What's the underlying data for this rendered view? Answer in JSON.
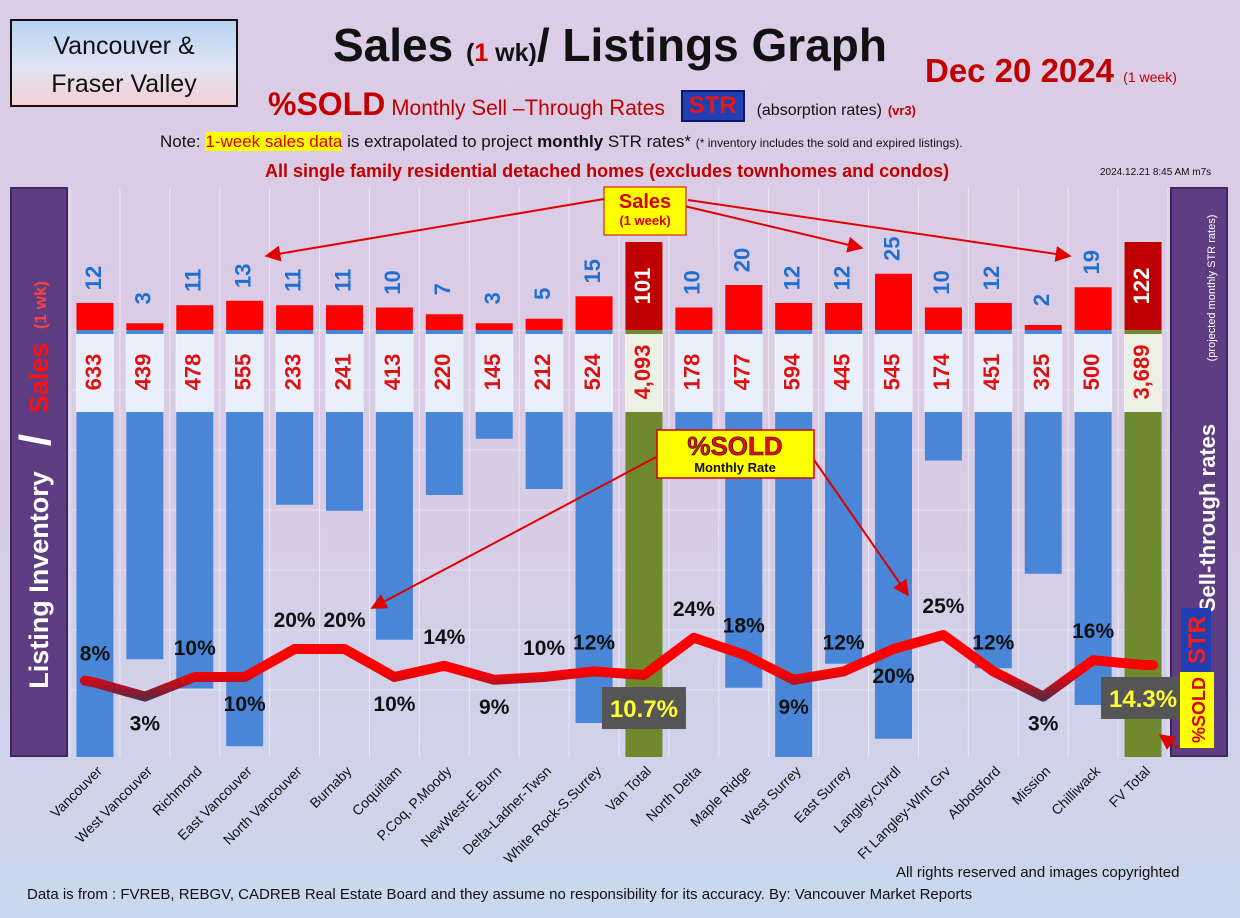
{
  "header": {
    "region_line1": "Vancouver &",
    "region_line2": "Fraser Valley",
    "title_a": "Sales",
    "title_paren_open": "(",
    "title_one": "1",
    "title_wk": " wk)",
    "title_b": "/ Listings Graph",
    "date": "Dec 20  2024",
    "date_note": "(1 week)",
    "pct_sold": "%SOLD",
    "subtitle_m": "M",
    "subtitle_monthly": "onthly ",
    "subtitle_s": "S",
    "subtitle_sell": "ell –",
    "subtitle_t": "T",
    "subtitle_through": "hrough ",
    "subtitle_r": "R",
    "subtitle_rates": "ates",
    "str_badge": "STR",
    "absorption": "(absorption rates)",
    "version": "(vr3)",
    "note_prefix": "Note: ",
    "note_highlight": "1-week sales data",
    "note_mid": " is extrapolated to project ",
    "note_bold": "monthly",
    "note_suffix": " STR rates* ",
    "note_small": "(* inventory includes the sold and expired listings).",
    "exclusion": "All single family residential detached homes (excludes townhomes and condos)",
    "timestamp": "2024.12.21 8:45 AM m7s"
  },
  "chart_data": {
    "type": "bar",
    "categories": [
      "Vancouver",
      "West Vancouver",
      "Richmond",
      "East Vancouver",
      "North Vancouver",
      "Burnaby",
      "Coquitlam",
      "P.Coq, P.Moody",
      "NewWest-E.Burn",
      "Delta-Ladner-Twsn",
      "White Rock-S.Surrey",
      "Van Total",
      "North Delta",
      "Maple Ridge",
      "West Surrey",
      "East Surrey",
      "Langley,Clvrdl",
      "Ft Langley-Wlnt Grv",
      "Abbotsford",
      "Mission",
      "Chilliwack",
      "FV Total"
    ],
    "series": [
      {
        "name": "Sales",
        "values": [
          12,
          3,
          11,
          13,
          11,
          11,
          10,
          7,
          3,
          5,
          15,
          101,
          10,
          20,
          12,
          12,
          25,
          10,
          12,
          2,
          19,
          122
        ]
      },
      {
        "name": "Listing Inventory",
        "values": [
          633,
          439,
          478,
          555,
          233,
          241,
          413,
          220,
          145,
          212,
          524,
          4093,
          178,
          477,
          594,
          445,
          545,
          174,
          451,
          325,
          500,
          3689
        ]
      },
      {
        "name": "%SOLD",
        "values": [
          8,
          3,
          10,
          10,
          20,
          20,
          10,
          14,
          9,
          10,
          12,
          10.7,
          24,
          18,
          9,
          12,
          20,
          25,
          12,
          3,
          16,
          14.3
        ]
      }
    ],
    "inventory_labels": [
      "633",
      "439",
      "478",
      "555",
      "233",
      "241",
      "413",
      "220",
      "145",
      "212",
      "524",
      "4,093",
      "178",
      "477",
      "594",
      "445",
      "545",
      "174",
      "451",
      "325",
      "500",
      "3,689"
    ],
    "pct_labels": [
      "8%",
      "3%",
      "10%",
      "10%",
      "20%",
      "20%",
      "10%",
      "14%",
      "9%",
      "10%",
      "12%",
      "10.7%",
      "24%",
      "18%",
      "9%",
      "12%",
      "20%",
      "25%",
      "12%",
      "3%",
      "16%",
      "14.3%"
    ],
    "total_indices": [
      11,
      21
    ],
    "left_axis_inventory": "Listing Inventory",
    "left_axis_slash": "/",
    "left_axis_sales": "Sales",
    "left_axis_wk": "(1 wk)",
    "right_axis_label": "Sell-through rates",
    "right_axis_note": "(projected monthly STR rates)",
    "right_axis_str": "STR",
    "right_axis_pct_sold": "%SOLD",
    "callout_sales": "Sales",
    "callout_sales_sub": "(1 week)",
    "callout_pct": "%SOLD",
    "callout_pct_sub": "Monthly Rate",
    "colors": {
      "sales_bar": "#ff0000",
      "sales_total_bar": "#c00000",
      "inventory_bar": "#4a86d8",
      "inventory_total_bar": "#6f8a2e",
      "sales_label": "#1f6fd1",
      "inventory_label": "#e01010",
      "line_high": "#ff0000",
      "line_low": "#1c3560"
    }
  },
  "footer": {
    "rights": "All rights reserved and  images copyrighted",
    "source": "Data is from : FVREB, REBGV, CADREB Real Estate Board and they assume no responsibility for its accuracy. By: Vancouver Market Reports"
  }
}
